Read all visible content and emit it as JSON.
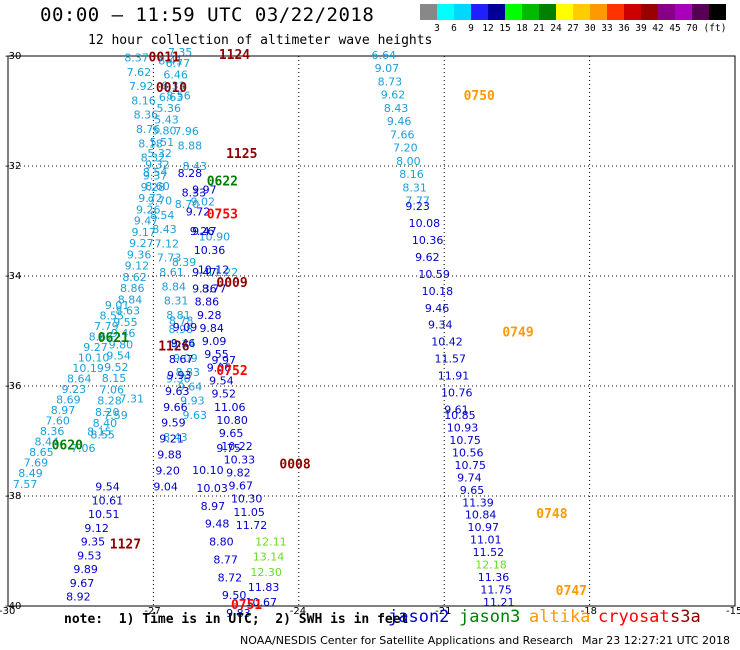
{
  "title": "00:00 – 11:59 UTC 03/22/2018",
  "subtitle": "12 hour collection of altimeter wave heights",
  "scale": {
    "colors": [
      "#888888",
      "#00ffff",
      "#00d8ff",
      "#2020ff",
      "#000099",
      "#00ff00",
      "#00bb00",
      "#008000",
      "#ffff00",
      "#ffcc00",
      "#ff9900",
      "#ff3300",
      "#cc0000",
      "#990000",
      "#880088",
      "#aa00bb",
      "#550055",
      "#000000"
    ],
    "labels": [
      "3",
      "6",
      "9",
      "12",
      "15",
      "18",
      "21",
      "24",
      "27",
      "30",
      "33",
      "36",
      "39",
      "42",
      "45",
      "70",
      "(ft)"
    ]
  },
  "axes": {
    "y_labels": [
      "-30",
      "-32",
      "-34",
      "-36",
      "-38",
      "-40"
    ],
    "x_labels": [
      "-30",
      "-27",
      "-24",
      "-21",
      "-18",
      "-15"
    ]
  },
  "colors": {
    "jason2": "#0000cc",
    "jason3": "#008000",
    "altika": "#ff9900",
    "cryosat": "#ff0000",
    "s3a": "#8b0000",
    "cyan": "#1aa0d8",
    "lightgreen": "#66dd22"
  },
  "chart_data": {
    "type": "map",
    "lat_range": [
      -40,
      -30
    ],
    "lon_range": [
      -30,
      -15
    ],
    "tracks": [
      {
        "label": "1124",
        "labelColor": "s3a",
        "labelAt": [
          -25.65,
          -30.05
        ],
        "color": "cyan",
        "from": [
          -26.7,
          -30.0
        ],
        "to": [
          -28.3,
          -36.95
        ],
        "values": [
          "7.35",
          "6.77",
          "6.46",
          "6.33",
          "6.63",
          "5.36",
          "5.43",
          "5.80",
          "5.51",
          "5.32",
          "9.32",
          "9.37",
          "9.28",
          "9.72",
          "9.26",
          "9.47",
          "9.17",
          "9.27",
          "9.36",
          "9.12",
          "8.62",
          "8.86",
          "8.84",
          "8.63",
          "9.55",
          "9.46",
          "9.80",
          "9.54",
          "9.52",
          "8.15",
          "7.06",
          "8.28",
          "8.20",
          "8.40",
          "8.55"
        ]
      },
      {
        "label": "0011",
        "labelColor": "s3a",
        "labelAt": [
          -27.1,
          -30.1
        ],
        "color": "cyan",
        "from": [
          -27.6,
          -30.1
        ],
        "to": [
          -26.4,
          -36.6
        ],
        "values": [
          "8.37",
          "7.62",
          "7.92",
          "8.16",
          "8.36",
          "8.76",
          "8.18",
          "8.32",
          "8.54",
          "8.60",
          "9.70",
          "8.54",
          "8.43",
          "7.12",
          "7.73",
          "8.61",
          "8.84",
          "8.31",
          "8.81",
          "8.98",
          "8.34",
          "9.09",
          "8.83",
          "9.64",
          "9.93",
          "9.63"
        ]
      },
      {
        "label": "0010",
        "labelColor": "s3a",
        "labelAt": [
          -26.95,
          -30.65
        ],
        "color": "cyan",
        "from": [
          -26.9,
          -30.15
        ],
        "to": [
          -25.9,
          -34.0
        ],
        "values": [
          "8.41",
          "8.56",
          "7.96",
          "8.43",
          "9.02",
          "10.90",
          "11.22"
        ]
      },
      {
        "label": "1125",
        "labelColor": "s3a",
        "labelAt": [
          -25.5,
          -31.85
        ],
        "color": "cyan",
        "from": [
          -26.5,
          -31.7
        ],
        "to": [
          -26.8,
          -37.0
        ],
        "values": [
          "8.88",
          "8.70",
          "8.39",
          "8.78",
          "9.36",
          "8.43"
        ]
      },
      {
        "label": "0622",
        "labelColor": "jason3",
        "labelAt": [
          -25.9,
          -32.35
        ],
        "color": "blue",
        "from": [
          -26.5,
          -32.2
        ],
        "to": [
          -26.0,
          -34.3
        ],
        "values": [
          "8.28",
          "8.33",
          "9.72",
          "9.26",
          "10.36",
          "10.12",
          "8.77"
        ]
      },
      {
        "label": "0753",
        "labelColor": "cryosat",
        "labelAt": [
          -25.9,
          -32.95
        ],
        "color": "blue",
        "from": [
          -26.2,
          -32.5
        ],
        "to": [
          -26.2,
          -34.0
        ],
        "values": [
          "9.97",
          "9.47",
          "9.47"
        ]
      },
      {
        "label": "0009",
        "labelColor": "s3a",
        "labelAt": [
          -25.7,
          -34.2
        ],
        "color": "blue",
        "from": [
          -26.2,
          -34.3
        ],
        "to": [
          -25.3,
          -38.6
        ],
        "values": [
          "9.36",
          "8.86",
          "9.28",
          "9.84",
          "9.09",
          "9.55",
          "9.06",
          "9.54",
          "9.52",
          "11.06",
          "10.80",
          "9.65",
          "10.22",
          "10.33",
          "9.82",
          "9.67",
          "10.30",
          "11.05",
          "11.72"
        ]
      },
      {
        "label": "0621",
        "labelColor": "jason3",
        "labelAt": [
          -28.15,
          -35.2
        ],
        "color": "cyan",
        "from": [
          -28.0,
          -34.6
        ],
        "to": [
          -29.9,
          -37.85
        ],
        "values": [
          "9.01",
          "8.55",
          "7.79",
          "8.67",
          "9.27",
          "10.10",
          "10.19",
          "8.64",
          "9.23",
          "8.69",
          "8.97",
          "7.60",
          "8.36",
          "8.44",
          "8.65",
          "7.69",
          "8.49",
          "7.57"
        ]
      },
      {
        "label": "1126",
        "labelColor": "s3a",
        "labelAt": [
          -26.9,
          -35.35
        ],
        "color": "blue",
        "from": [
          -26.6,
          -35.0
        ],
        "to": [
          -27.0,
          -37.9
        ],
        "values": [
          "9.09",
          "9.46",
          "8.67",
          "9.93",
          "9.63",
          "9.66",
          "9.59",
          "9.21",
          "9.88",
          "9.20",
          "9.04"
        ]
      },
      {
        "label": "0752",
        "labelColor": "cryosat",
        "labelAt": [
          -25.7,
          -35.8
        ],
        "color": "blue",
        "from": [
          -25.8,
          -35.6
        ],
        "to": [
          -25.7,
          -37.2
        ],
        "values": [
          "9.97",
          "9.75"
        ]
      },
      {
        "label": "0620",
        "labelColor": "jason3",
        "labelAt": [
          -29.1,
          -37.15
        ],
        "color": "cyan",
        "from": [
          -27.7,
          -36.3
        ],
        "to": [
          -28.7,
          -37.2
        ],
        "values": [
          "7.31",
          "7.59",
          "8.15",
          "7.06"
        ]
      },
      {
        "label": "0008",
        "labelColor": "s3a",
        "labelAt": [
          -24.4,
          -37.5
        ],
        "color": "blue",
        "from": [
          -26.2,
          -37.6
        ],
        "to": [
          -25.5,
          -40.2
        ],
        "values": [
          "10.10",
          "10.03",
          "8.97",
          "9.48",
          "8.80",
          "8.77",
          "8.72",
          "9.50",
          "9.83"
        ]
      },
      {
        "label": "1127",
        "labelColor": "s3a",
        "labelAt": [
          -27.9,
          -38.95
        ],
        "color": "blue",
        "from": [
          -28.2,
          -37.9
        ],
        "to": [
          -28.8,
          -39.9
        ],
        "values": [
          "9.54",
          "10.61",
          "10.51",
          "9.12",
          "9.35",
          "9.53",
          "9.89",
          "9.67",
          "8.92"
        ]
      },
      {
        "label": "0751",
        "labelColor": "cryosat",
        "labelAt": [
          -25.4,
          -40.05
        ],
        "color": "blue",
        "from": [
          -24.9,
          -38.9
        ],
        "to": [
          -25.1,
          -40.0
        ],
        "values": [
          "12.11",
          "13.14",
          "12.30",
          "11.83",
          "10.67"
        ]
      },
      {
        "label": "0750",
        "labelColor": "altika",
        "labelAt": [
          -20.6,
          -30.8
        ],
        "color": "cyan",
        "from": [
          -22.5,
          -30.05
        ],
        "to": [
          -21.8,
          -32.7
        ],
        "values": [
          "6.64",
          "9.07",
          "8.73",
          "9.62",
          "8.43",
          "9.46",
          "7.66",
          "7.20",
          "8.00",
          "8.16",
          "8.31",
          "7.77"
        ]
      },
      {
        "label": "0749",
        "labelColor": "altika",
        "labelAt": [
          -19.8,
          -35.1
        ],
        "color": "blue",
        "from": [
          -21.8,
          -32.8
        ],
        "to": [
          -21.0,
          -36.5
        ],
        "values": [
          "9.23",
          "10.08",
          "10.36",
          "9.62",
          "10.59",
          "10.18",
          "9.46",
          "9.34",
          "10.42",
          "11.57",
          "11.91",
          "10.76",
          "9.61"
        ]
      },
      {
        "label": "0748",
        "labelColor": "altika",
        "labelAt": [
          -19.1,
          -38.4
        ],
        "color": "blue",
        "from": [
          -21.0,
          -36.6
        ],
        "to": [
          -20.2,
          -40.0
        ],
        "values": [
          "10.85",
          "10.93",
          "10.75",
          "10.56",
          "10.75",
          "9.74",
          "9.65",
          "11.39",
          "10.84",
          "10.97",
          "11.01",
          "11.52",
          "12.18",
          "11.36",
          "11.75",
          "11.21"
        ]
      },
      {
        "label": "0747",
        "labelColor": "altika",
        "labelAt": [
          -18.7,
          -39.8
        ],
        "color": "blue",
        "from": [
          -20.2,
          -39.8
        ],
        "to": [
          -20.2,
          -39.8
        ],
        "values": []
      }
    ]
  },
  "note": "note:  1) Time is in UTC;  2) SWH is in feet",
  "legend": [
    {
      "name": "jason2",
      "color": "#0000cc"
    },
    {
      "name": "jason3",
      "color": "#008000"
    },
    {
      "name": "altika",
      "color": "#ff9900"
    },
    {
      "name": "cryosat",
      "color": "#ff0000"
    },
    {
      "name": "s3a",
      "color": "#8b0000"
    }
  ],
  "credit": "NOAA/NESDIS Center for Satellite Applications and Research",
  "stamp": "Mar 23 12:27:21 UTC 2018"
}
